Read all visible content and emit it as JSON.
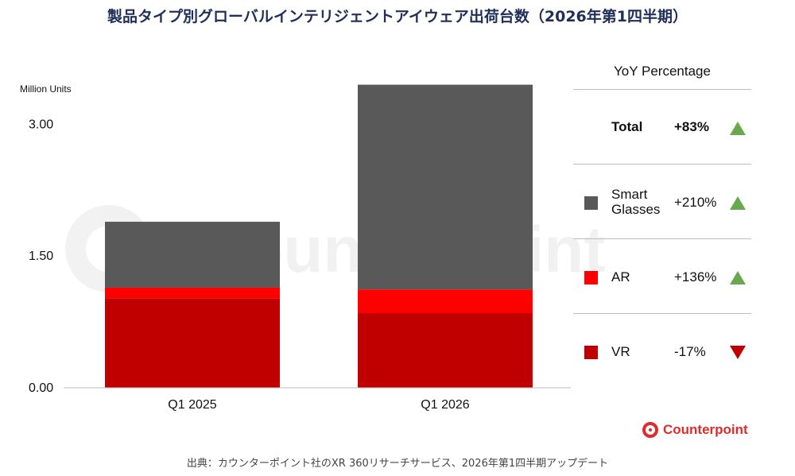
{
  "title": "製品タイプ別グローバルインテリジェントアイウェア出荷台数（2026年第1四半期）",
  "source": "出典：カウンターポイント社のXR 360リサーチサービス、2026年第1四半期アップデート",
  "watermark": "Counterpoint",
  "logo": {
    "text": "Counterpoint",
    "icon": "counterpoint-logo-icon"
  },
  "colors": {
    "smart_glasses": "#595959",
    "ar": "#ff0000",
    "vr": "#c00000",
    "up": "#6aa84f",
    "down": "#c00000",
    "title": "#1f2f5a"
  },
  "chart_data": {
    "type": "bar",
    "stacked": true,
    "ylabel": "Million Units",
    "ylim": [
      0,
      3.6
    ],
    "yticks": [
      "0.00",
      "1.50",
      "3.00"
    ],
    "ytick_values": [
      0,
      1.5,
      3.0
    ],
    "categories": [
      "Q1 2025",
      "Q1 2026"
    ],
    "series": [
      {
        "name": "VR",
        "values": [
          1.02,
          0.85
        ]
      },
      {
        "name": "AR",
        "values": [
          0.12,
          0.27
        ]
      },
      {
        "name": "Smart Glasses",
        "values": [
          0.75,
          2.33
        ]
      }
    ],
    "grid": false
  },
  "yoy": {
    "header": "YoY Percentage",
    "rows": [
      {
        "label": "Total",
        "pct": "+83%",
        "direction": "up"
      },
      {
        "label": "Smart\nGlasses",
        "pct": "+210%",
        "direction": "up"
      },
      {
        "label": "AR",
        "pct": "+136%",
        "direction": "up"
      },
      {
        "label": "VR",
        "pct": "-17%",
        "direction": "down"
      }
    ]
  }
}
